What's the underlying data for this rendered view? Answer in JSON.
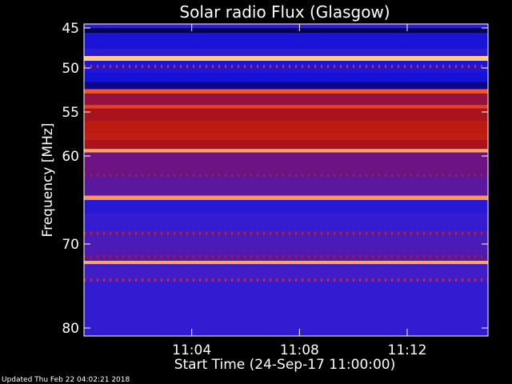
{
  "chart_data": {
    "type": "heatmap",
    "title": "Solar radio Flux (Glasgow)",
    "ylabel": "Frequency [MHz]",
    "xlabel": "Start Time (24-Sep-17 11:00:00)",
    "footer": "Updated Thu Feb 22 04:02:21 2018",
    "y_axis": {
      "range": [
        45,
        80
      ],
      "direction": "top-to-bottom",
      "ticks": [
        {
          "label": "45",
          "value": 45
        },
        {
          "label": "50",
          "value": 50
        },
        {
          "label": "55",
          "value": 55
        },
        {
          "label": "60",
          "value": 60
        },
        {
          "label": "70",
          "value": 70
        },
        {
          "label": "80",
          "value": 80
        }
      ]
    },
    "x_axis": {
      "range_minutes": [
        0,
        15
      ],
      "ticks": [
        {
          "label": "11:04",
          "minute": 4
        },
        {
          "label": "11:08",
          "minute": 8
        },
        {
          "label": "11:12",
          "minute": 12
        }
      ]
    },
    "colormap": [
      "#00003c",
      "#1010d8",
      "#3a1ed0",
      "#7a1070",
      "#b01410",
      "#e03018",
      "#ff8844",
      "#ffe8a0"
    ],
    "bands": [
      {
        "f0": 45.0,
        "f1": 45.6,
        "level": 0.02
      },
      {
        "f0": 45.6,
        "f1": 47.6,
        "level": 0.18
      },
      {
        "f0": 47.6,
        "f1": 48.5,
        "level": 0.25
      },
      {
        "f0": 48.5,
        "f1": 49.1,
        "level": 0.96
      },
      {
        "f0": 49.1,
        "f1": 50.5,
        "level": 0.2
      },
      {
        "f0": 50.5,
        "f1": 51.6,
        "level": 0.16
      },
      {
        "f0": 51.6,
        "f1": 52.4,
        "level": 0.07
      },
      {
        "f0": 52.4,
        "f1": 52.9,
        "level": 0.78
      },
      {
        "f0": 52.9,
        "f1": 54.2,
        "level": 0.5
      },
      {
        "f0": 54.2,
        "f1": 54.6,
        "level": 0.74
      },
      {
        "f0": 54.6,
        "f1": 56.0,
        "level": 0.55
      },
      {
        "f0": 56.0,
        "f1": 57.3,
        "level": 0.6
      },
      {
        "f0": 57.3,
        "f1": 58.2,
        "level": 0.62
      },
      {
        "f0": 58.2,
        "f1": 59.2,
        "level": 0.55
      },
      {
        "f0": 59.2,
        "f1": 59.6,
        "level": 0.9
      },
      {
        "f0": 59.6,
        "f1": 62.0,
        "level": 0.4
      },
      {
        "f0": 62.0,
        "f1": 64.5,
        "level": 0.36
      },
      {
        "f0": 64.5,
        "f1": 65.0,
        "level": 0.88
      },
      {
        "f0": 65.0,
        "f1": 66.5,
        "level": 0.22
      },
      {
        "f0": 66.5,
        "f1": 68.5,
        "level": 0.27
      },
      {
        "f0": 68.5,
        "f1": 70.2,
        "level": 0.32
      },
      {
        "f0": 70.2,
        "f1": 72.0,
        "level": 0.33
      },
      {
        "f0": 72.0,
        "f1": 72.4,
        "level": 0.9
      },
      {
        "f0": 72.4,
        "f1": 74.5,
        "level": 0.3
      },
      {
        "f0": 74.5,
        "f1": 80.0,
        "level": 0.26
      }
    ],
    "dotted_lines": [
      {
        "f": 49.8,
        "level": 0.7
      },
      {
        "f": 62.2,
        "level": 0.6
      },
      {
        "f": 68.8,
        "level": 0.65
      },
      {
        "f": 71.5,
        "level": 0.6
      },
      {
        "f": 74.3,
        "level": 0.7
      }
    ]
  }
}
